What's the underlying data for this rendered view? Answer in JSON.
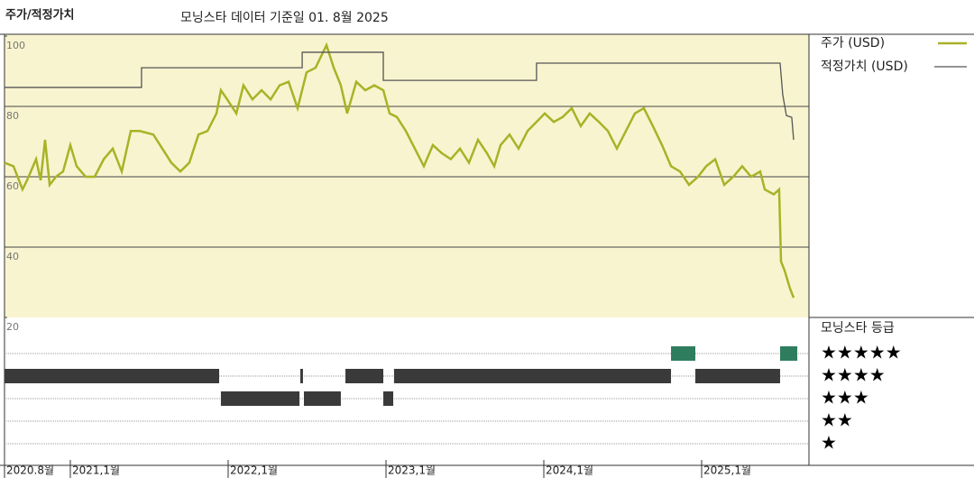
{
  "chart_data": {
    "type": "line",
    "title": "주가/적정가치",
    "subtitle": "모닝스타 데이터 기준일 01. 8월 2025",
    "xlim": [
      2020.583,
      2025.68
    ],
    "xticks": [
      {
        "value": 2020.583,
        "label": "2020.8월"
      },
      {
        "value": 2021,
        "label": "2021,1월"
      },
      {
        "value": 2022,
        "label": "2022,1월"
      },
      {
        "value": 2023,
        "label": "2023,1월"
      },
      {
        "value": 2024,
        "label": "2024,1월"
      },
      {
        "value": 2025,
        "label": "2025,1월"
      }
    ],
    "ylim": [
      20,
      100
    ],
    "yticks": [
      20,
      40,
      60,
      80,
      100
    ],
    "grid": true,
    "series": [
      {
        "name": "주가 (USD)",
        "color": "#a9b227",
        "x": [
          2020.583,
          2020.64,
          2020.697,
          2020.726,
          2020.783,
          2020.812,
          2020.84,
          2020.869,
          2020.909,
          2020.954,
          2021.0,
          2021.04,
          2021.097,
          2021.154,
          2021.212,
          2021.269,
          2021.326,
          2021.383,
          2021.44,
          2021.526,
          2021.583,
          2021.64,
          2021.697,
          2021.754,
          2021.812,
          2021.869,
          2021.926,
          2021.954,
          2021.994,
          2022.052,
          2022.097,
          2022.154,
          2022.212,
          2022.269,
          2022.326,
          2022.383,
          2022.44,
          2022.497,
          2022.554,
          2022.623,
          2022.669,
          2022.714,
          2022.754,
          2022.812,
          2022.869,
          2022.926,
          2022.983,
          2023.023,
          2023.069,
          2023.126,
          2023.183,
          2023.24,
          2023.297,
          2023.354,
          2023.411,
          2023.469,
          2023.526,
          2023.583,
          2023.64,
          2023.686,
          2023.726,
          2023.783,
          2023.84,
          2023.897,
          2023.954,
          2024.006,
          2024.063,
          2024.12,
          2024.177,
          2024.234,
          2024.291,
          2024.349,
          2024.406,
          2024.463,
          2024.52,
          2024.577,
          2024.634,
          2024.691,
          2024.749,
          2024.806,
          2024.863,
          2024.92,
          2024.977,
          2025.029,
          2025.086,
          2025.143,
          2025.2,
          2025.257,
          2025.314,
          2025.371,
          2025.4,
          2025.457,
          2025.491,
          2025.503,
          2025.526,
          2025.56,
          2025.583
        ],
        "values": [
          64,
          63,
          56.4,
          59,
          65,
          59,
          70.5,
          57.7,
          60,
          61.5,
          69,
          63,
          60,
          60,
          65,
          68,
          61.5,
          73,
          73,
          72,
          68,
          64,
          61.5,
          64,
          72,
          73,
          78,
          84.6,
          82,
          78,
          86,
          82,
          84.6,
          82,
          86,
          87,
          79.5,
          89.7,
          91,
          97.4,
          91,
          86,
          78,
          87,
          84.6,
          86,
          84.6,
          78,
          77,
          73,
          68,
          63,
          69,
          66.7,
          65,
          68,
          64,
          70.5,
          66.7,
          63,
          69,
          72,
          68,
          73,
          75.6,
          78,
          75.6,
          77,
          79.5,
          74.4,
          78,
          75.6,
          73,
          68,
          73,
          78,
          79.5,
          74.4,
          69,
          63,
          61.5,
          57.7,
          60,
          63,
          65,
          57.7,
          60,
          63,
          60,
          61.5,
          56.4,
          55,
          56.4,
          35.9,
          33.3,
          28.2,
          25.6
        ]
      },
      {
        "name": "적정가치 (USD)",
        "color": "#555555",
        "x": [
          2020.583,
          2021.451,
          2021.451,
          2022.469,
          2022.469,
          2022.983,
          2022.983,
          2023.954,
          2023.954,
          2025.497,
          2025.514,
          2025.537,
          2025.571,
          2025.583
        ],
        "values": [
          85.4,
          85.4,
          91,
          91,
          95.4,
          95.4,
          87.4,
          87.4,
          92.3,
          92.3,
          83.3,
          77.4,
          76.9,
          70.5
        ]
      }
    ],
    "ratings": {
      "title": "모닝스타 등급",
      "levels": [
        {
          "stars": 5,
          "label": "★★★★★",
          "color": "#2f7d5f"
        },
        {
          "stars": 4,
          "label": "★★★★",
          "color": "#3a3a3a"
        },
        {
          "stars": 3,
          "label": "★★★",
          "color": "#3a3a3a"
        },
        {
          "stars": 2,
          "label": "★★"
        },
        {
          "stars": 1,
          "label": "★"
        }
      ],
      "periods": [
        {
          "start": 2020.583,
          "end": 2021.943,
          "stars": 4
        },
        {
          "start": 2021.954,
          "end": 2022.452,
          "stars": 3
        },
        {
          "start": 2022.457,
          "end": 2022.474,
          "stars": 4
        },
        {
          "start": 2022.48,
          "end": 2022.714,
          "stars": 3
        },
        {
          "start": 2022.743,
          "end": 2022.983,
          "stars": 4
        },
        {
          "start": 2022.983,
          "end": 2023.046,
          "stars": 3
        },
        {
          "start": 2023.051,
          "end": 2024.806,
          "stars": 4
        },
        {
          "start": 2024.806,
          "end": 2024.96,
          "stars": 5
        },
        {
          "start": 2024.96,
          "end": 2025.497,
          "stars": 4
        },
        {
          "start": 2025.497,
          "end": 2025.606,
          "stars": 5
        }
      ]
    }
  }
}
